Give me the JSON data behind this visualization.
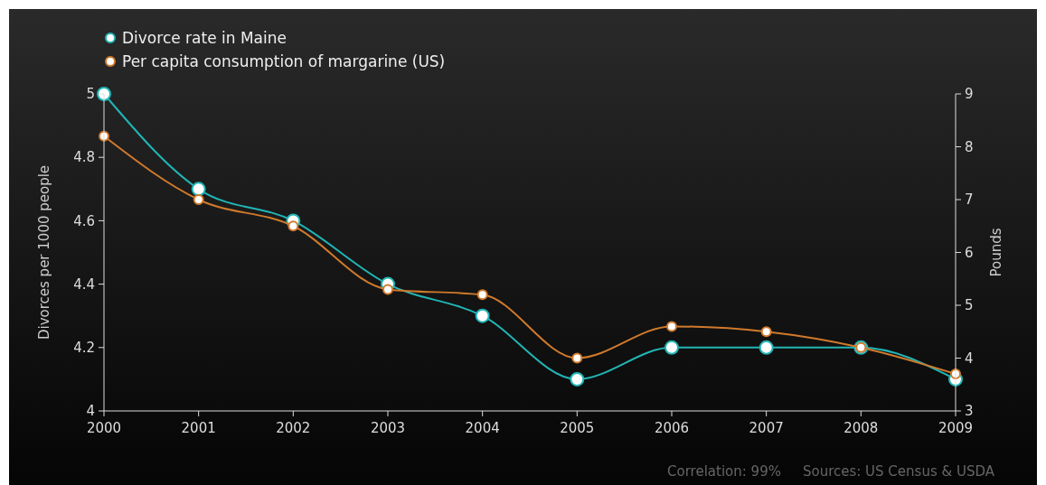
{
  "chart_data": {
    "type": "line",
    "xlabel": null,
    "ylabel": "Divorces per 1000 people",
    "y2label": "Pounds",
    "categories": [
      "2000",
      "2001",
      "2002",
      "2003",
      "2004",
      "2005",
      "2006",
      "2007",
      "2008",
      "2009"
    ],
    "series": [
      {
        "name": "Divorce rate in Maine",
        "color": "#22b5b5",
        "values": [
          5.0,
          4.7,
          4.6,
          4.4,
          4.3,
          4.1,
          4.2,
          4.2,
          4.2,
          4.1
        ]
      },
      {
        "name": "Per capita consumption of margarine (US)",
        "color": "#d07a2c",
        "axis": "y2",
        "values": [
          8.2,
          7.0,
          6.5,
          5.3,
          5.2,
          4.0,
          4.6,
          4.5,
          4.2,
          3.7
        ]
      }
    ],
    "ylim": [
      4,
      5
    ],
    "yticks": [
      4,
      4.2,
      4.4,
      4.6,
      4.8,
      5
    ],
    "y2lim": [
      3,
      9
    ],
    "y2ticks": [
      3,
      4,
      5,
      6,
      7,
      8,
      9
    ],
    "marker": "circle",
    "legend": "top left",
    "grid": false,
    "annotations": [
      "Correlation: 99%",
      "Sources: US Census & USDA"
    ]
  }
}
